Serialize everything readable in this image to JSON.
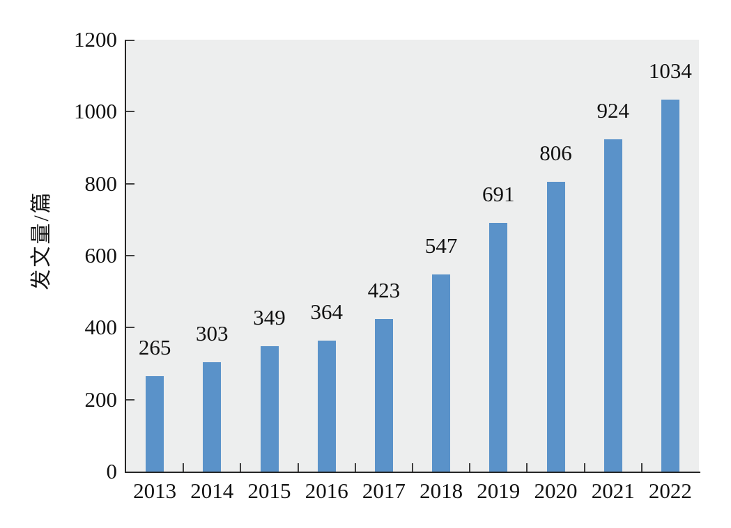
{
  "chart_data": {
    "type": "bar",
    "categories": [
      "2013",
      "2014",
      "2015",
      "2016",
      "2017",
      "2018",
      "2019",
      "2020",
      "2021",
      "2022"
    ],
    "values": [
      265,
      303,
      349,
      364,
      423,
      547,
      691,
      806,
      924,
      1034
    ],
    "value_labels_shown": true,
    "title": "",
    "xlabel": "",
    "ylabel": "发文量/篇",
    "ylim": [
      0,
      1200
    ],
    "ytick_step": 200,
    "yticks": [
      0,
      200,
      400,
      600,
      800,
      1000,
      1200
    ],
    "ytick_labels": [
      "0",
      "200",
      "400",
      "600",
      "800",
      "1000",
      "1200"
    ],
    "grid": "off",
    "legend": "none",
    "colors": {
      "bar": "#5A92C9",
      "plot_background": "#EDEEEE",
      "axis": "#262626",
      "tick": "#3F3F3F",
      "text": "#111111",
      "page_background": "#FFFFFF"
    }
  }
}
